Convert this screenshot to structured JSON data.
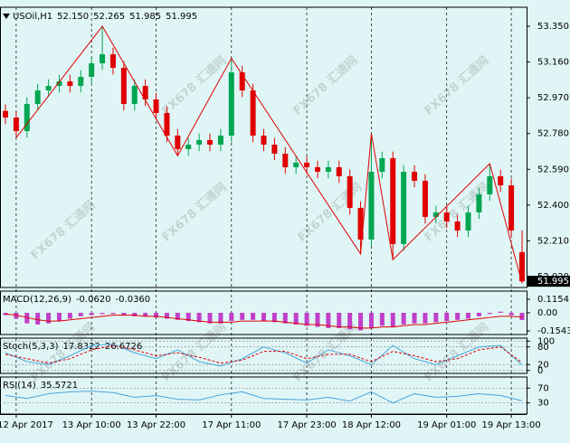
{
  "watermark": "FX678 汇通网",
  "chart_data": [
    {
      "type": "candlestick",
      "title": "USOil,H1",
      "header_labels": [
        "52.150",
        "52.265",
        "51.985",
        "51.995"
      ],
      "categories": [
        null,
        "12 Apr 2017",
        null,
        null,
        null,
        null,
        null,
        null,
        "13 Apr 10:00",
        null,
        null,
        null,
        null,
        null,
        "13 Apr 22:00",
        null,
        null,
        null,
        null,
        null,
        null,
        "17 Apr 11:00",
        null,
        null,
        null,
        null,
        null,
        null,
        "17 Apr 23:00",
        null,
        null,
        null,
        null,
        null,
        "18 Apr 12:00",
        null,
        null,
        null,
        null,
        null,
        null,
        "19 Apr 01:00",
        null,
        null,
        null,
        null,
        null,
        "19 Apr 13:00",
        null
      ],
      "open": [
        52.9,
        52.865,
        52.793,
        52.937,
        53.009,
        53.033,
        53.057,
        53.033,
        53.081,
        53.153,
        53.201,
        53.129,
        52.937,
        53.033,
        52.961,
        52.889,
        52.769,
        52.697,
        52.721,
        52.745,
        52.721,
        52.769,
        53.105,
        53.009,
        52.769,
        52.721,
        52.673,
        52.601,
        52.625,
        52.601,
        52.577,
        52.601,
        52.553,
        52.385,
        52.217,
        52.577,
        52.649,
        52.193,
        52.577,
        52.529,
        52.337,
        52.361,
        52.313,
        52.265,
        52.361,
        52.457,
        52.553,
        52.505,
        52.15
      ],
      "high": [
        52.935,
        52.9,
        52.972,
        53.044,
        53.068,
        53.092,
        53.092,
        53.116,
        53.188,
        53.35,
        53.236,
        53.164,
        53.068,
        53.068,
        52.996,
        52.924,
        52.804,
        52.756,
        52.78,
        52.78,
        52.804,
        53.18,
        53.14,
        53.044,
        52.804,
        52.756,
        52.708,
        52.66,
        52.66,
        52.636,
        52.636,
        52.636,
        52.588,
        52.42,
        52.78,
        52.684,
        52.684,
        52.612,
        52.612,
        52.564,
        52.396,
        52.396,
        52.348,
        52.396,
        52.492,
        52.62,
        52.588,
        52.54,
        52.265
      ],
      "low": [
        52.83,
        52.758,
        52.758,
        52.902,
        52.974,
        52.998,
        52.998,
        52.998,
        53.046,
        53.118,
        53.094,
        52.902,
        52.902,
        52.926,
        52.854,
        52.734,
        52.662,
        52.662,
        52.686,
        52.686,
        52.686,
        52.734,
        52.974,
        52.734,
        52.686,
        52.638,
        52.566,
        52.566,
        52.566,
        52.542,
        52.542,
        52.518,
        52.35,
        52.14,
        52.182,
        52.542,
        52.11,
        52.158,
        52.494,
        52.302,
        52.302,
        52.278,
        52.23,
        52.23,
        52.326,
        52.422,
        52.47,
        52.23,
        51.985
      ],
      "close": [
        52.865,
        52.793,
        52.937,
        53.009,
        53.033,
        53.057,
        53.033,
        53.081,
        53.153,
        53.201,
        53.129,
        52.937,
        53.033,
        52.961,
        52.889,
        52.769,
        52.697,
        52.721,
        52.745,
        52.721,
        52.769,
        53.105,
        53.009,
        52.769,
        52.721,
        52.673,
        52.601,
        52.625,
        52.601,
        52.577,
        52.601,
        52.553,
        52.385,
        52.217,
        52.577,
        52.649,
        52.193,
        52.577,
        52.529,
        52.337,
        52.361,
        52.313,
        52.265,
        52.361,
        52.457,
        52.553,
        52.505,
        52.265,
        51.995
      ],
      "up_color": "#00a651",
      "down_color": "#e00000",
      "zigzag": {
        "color": "#e00000",
        "x": [
          1,
          9,
          16,
          21,
          33,
          34,
          36,
          45,
          48
        ],
        "values": [
          52.758,
          53.35,
          52.662,
          53.18,
          52.14,
          52.78,
          52.11,
          52.62,
          51.985
        ]
      },
      "ylim": [
        51.962,
        53.451
      ],
      "yticks": [
        {
          "value": 53.35,
          "label": "53.350"
        },
        {
          "value": 53.16,
          "label": "53.160"
        },
        {
          "value": 52.97,
          "label": "52.970"
        },
        {
          "value": 52.78,
          "label": "52.780"
        },
        {
          "value": 52.59,
          "label": "52.590"
        },
        {
          "value": 52.4,
          "label": "52.400"
        },
        {
          "value": 52.21,
          "label": "52.210"
        },
        {
          "value": 52.02,
          "label": "52.020"
        }
      ]
    },
    {
      "type": "bar",
      "title": "MACD(12,26,9)",
      "readout_labels": [
        "-0.0620",
        "-0.0360"
      ],
      "color": "#c040c8",
      "values": [
        -0.02,
        -0.05,
        -0.09,
        -0.1,
        -0.09,
        -0.07,
        -0.05,
        -0.03,
        -0.02,
        -0.01,
        -0.01,
        -0.02,
        -0.03,
        -0.03,
        -0.04,
        -0.05,
        -0.06,
        -0.07,
        -0.08,
        -0.09,
        -0.09,
        -0.07,
        -0.06,
        -0.06,
        -0.07,
        -0.08,
        -0.09,
        -0.1,
        -0.11,
        -0.12,
        -0.13,
        -0.13,
        -0.14,
        -0.15,
        -0.13,
        -0.11,
        -0.12,
        -0.1,
        -0.09,
        -0.09,
        -0.08,
        -0.07,
        -0.06,
        -0.05,
        -0.03,
        -0.01,
        0.01,
        -0.02,
        -0.062
      ],
      "signal": {
        "color": "#e00000",
        "values": [
          -0.01,
          -0.02,
          -0.04,
          -0.06,
          -0.07,
          -0.07,
          -0.06,
          -0.05,
          -0.04,
          -0.03,
          -0.02,
          -0.02,
          -0.02,
          -0.03,
          -0.03,
          -0.04,
          -0.05,
          -0.06,
          -0.07,
          -0.08,
          -0.08,
          -0.08,
          -0.07,
          -0.07,
          -0.07,
          -0.07,
          -0.08,
          -0.09,
          -0.1,
          -0.1,
          -0.11,
          -0.12,
          -0.12,
          -0.13,
          -0.13,
          -0.12,
          -0.12,
          -0.11,
          -0.1,
          -0.1,
          -0.09,
          -0.08,
          -0.07,
          -0.06,
          -0.05,
          -0.04,
          -0.03,
          -0.03,
          -0.036
        ]
      },
      "ylim": [
        -0.185,
        0.185
      ],
      "yticks": [
        0.1154,
        {
          "value": 0,
          "label": "0.00"
        },
        -0.1543
      ]
    },
    {
      "type": "line",
      "title": "Stoch(5,3,3)",
      "readout_labels": [
        "17.8322",
        "26.6726"
      ],
      "grid": true,
      "series": [
        {
          "color": "#4aa8d8",
          "values": [
            60,
            30,
            20,
            50,
            85,
            90,
            60,
            40,
            70,
            30,
            15,
            40,
            80,
            60,
            25,
            70,
            50,
            20,
            85,
            40,
            20,
            50,
            80,
            85,
            18
          ]
        },
        {
          "color": "#e00000",
          "dash": true,
          "values": [
            55,
            40,
            25,
            40,
            70,
            85,
            70,
            50,
            60,
            45,
            25,
            35,
            65,
            65,
            40,
            55,
            55,
            30,
            65,
            50,
            30,
            40,
            70,
            80,
            27
          ]
        }
      ],
      "ylim": [
        -10,
        110
      ],
      "yticks": [
        100,
        80,
        20,
        0
      ]
    },
    {
      "type": "line",
      "title": "RSI(14)",
      "readout_labels": [
        "35.5721"
      ],
      "grid": true,
      "series": [
        {
          "color": "#4aa3df",
          "values": [
            50,
            42,
            55,
            60,
            62,
            58,
            45,
            50,
            40,
            38,
            52,
            60,
            42,
            40,
            38,
            45,
            35,
            60,
            30,
            55,
            45,
            48,
            55,
            50,
            36
          ]
        }
      ],
      "ylim": [
        0,
        100
      ],
      "yticks": [
        70,
        30
      ]
    }
  ]
}
